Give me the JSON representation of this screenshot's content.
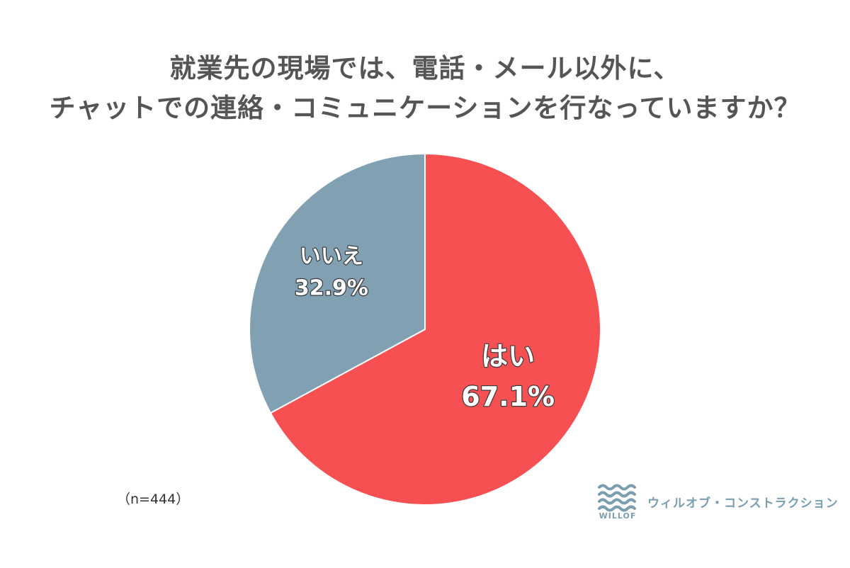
{
  "title_lines": [
    "就業先の現場では、電話・メール以外に、",
    "チャットでの連絡・コミュニケーションを行なっていますか？"
  ],
  "sample_note": "（n=444）",
  "logo": {
    "wordmark": "WILLOF",
    "company": "ウィルオブ・コンストラクション",
    "mark_icon": "waves-icon",
    "color": "#7a9eb0"
  },
  "chart_data": {
    "type": "pie",
    "title": "就業先の現場では、電話・メール以外に、チャットでの連絡・コミュニケーションを行なっていますか？",
    "start_angle": "12 o'clock",
    "direction": "clockwise",
    "slices": [
      {
        "label": "はい",
        "value": 67.1,
        "display_value": "67.1%",
        "color": "#f65053"
      },
      {
        "label": "いいえ",
        "value": 32.9,
        "display_value": "32.9%",
        "color": "#81a1b3"
      }
    ],
    "legend": "none (labels on slices)"
  }
}
